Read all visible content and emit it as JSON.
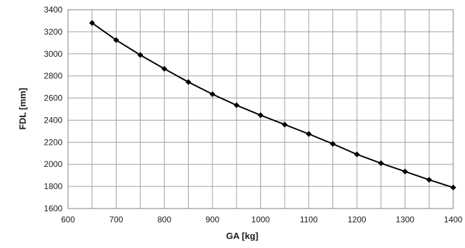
{
  "chart_data": {
    "type": "line",
    "xlabel": "GA  [kg]",
    "ylabel": "FDL  [mm]",
    "xlim": [
      600,
      1400
    ],
    "ylim": [
      1600,
      3400
    ],
    "xticks": [
      "600",
      "700",
      "800",
      "900",
      "1000",
      "1100",
      "1200",
      "1300",
      "1400"
    ],
    "yticks": [
      "1600",
      "1800",
      "2000",
      "2200",
      "2400",
      "2600",
      "2800",
      "3000",
      "3200",
      "3400"
    ],
    "x_grid_step": 50,
    "y_grid_step": 200,
    "grid": true,
    "legend": "none",
    "series": [
      {
        "marker": "diamond",
        "color": "#000000",
        "x": [
          650,
          700,
          750,
          800,
          850,
          900,
          950,
          1000,
          1050,
          1100,
          1150,
          1200,
          1250,
          1300,
          1350,
          1400
        ],
        "y": [
          3280,
          3125,
          2990,
          2865,
          2745,
          2635,
          2535,
          2445,
          2360,
          2275,
          2185,
          2090,
          2010,
          1935,
          1860,
          1790
        ]
      }
    ]
  }
}
